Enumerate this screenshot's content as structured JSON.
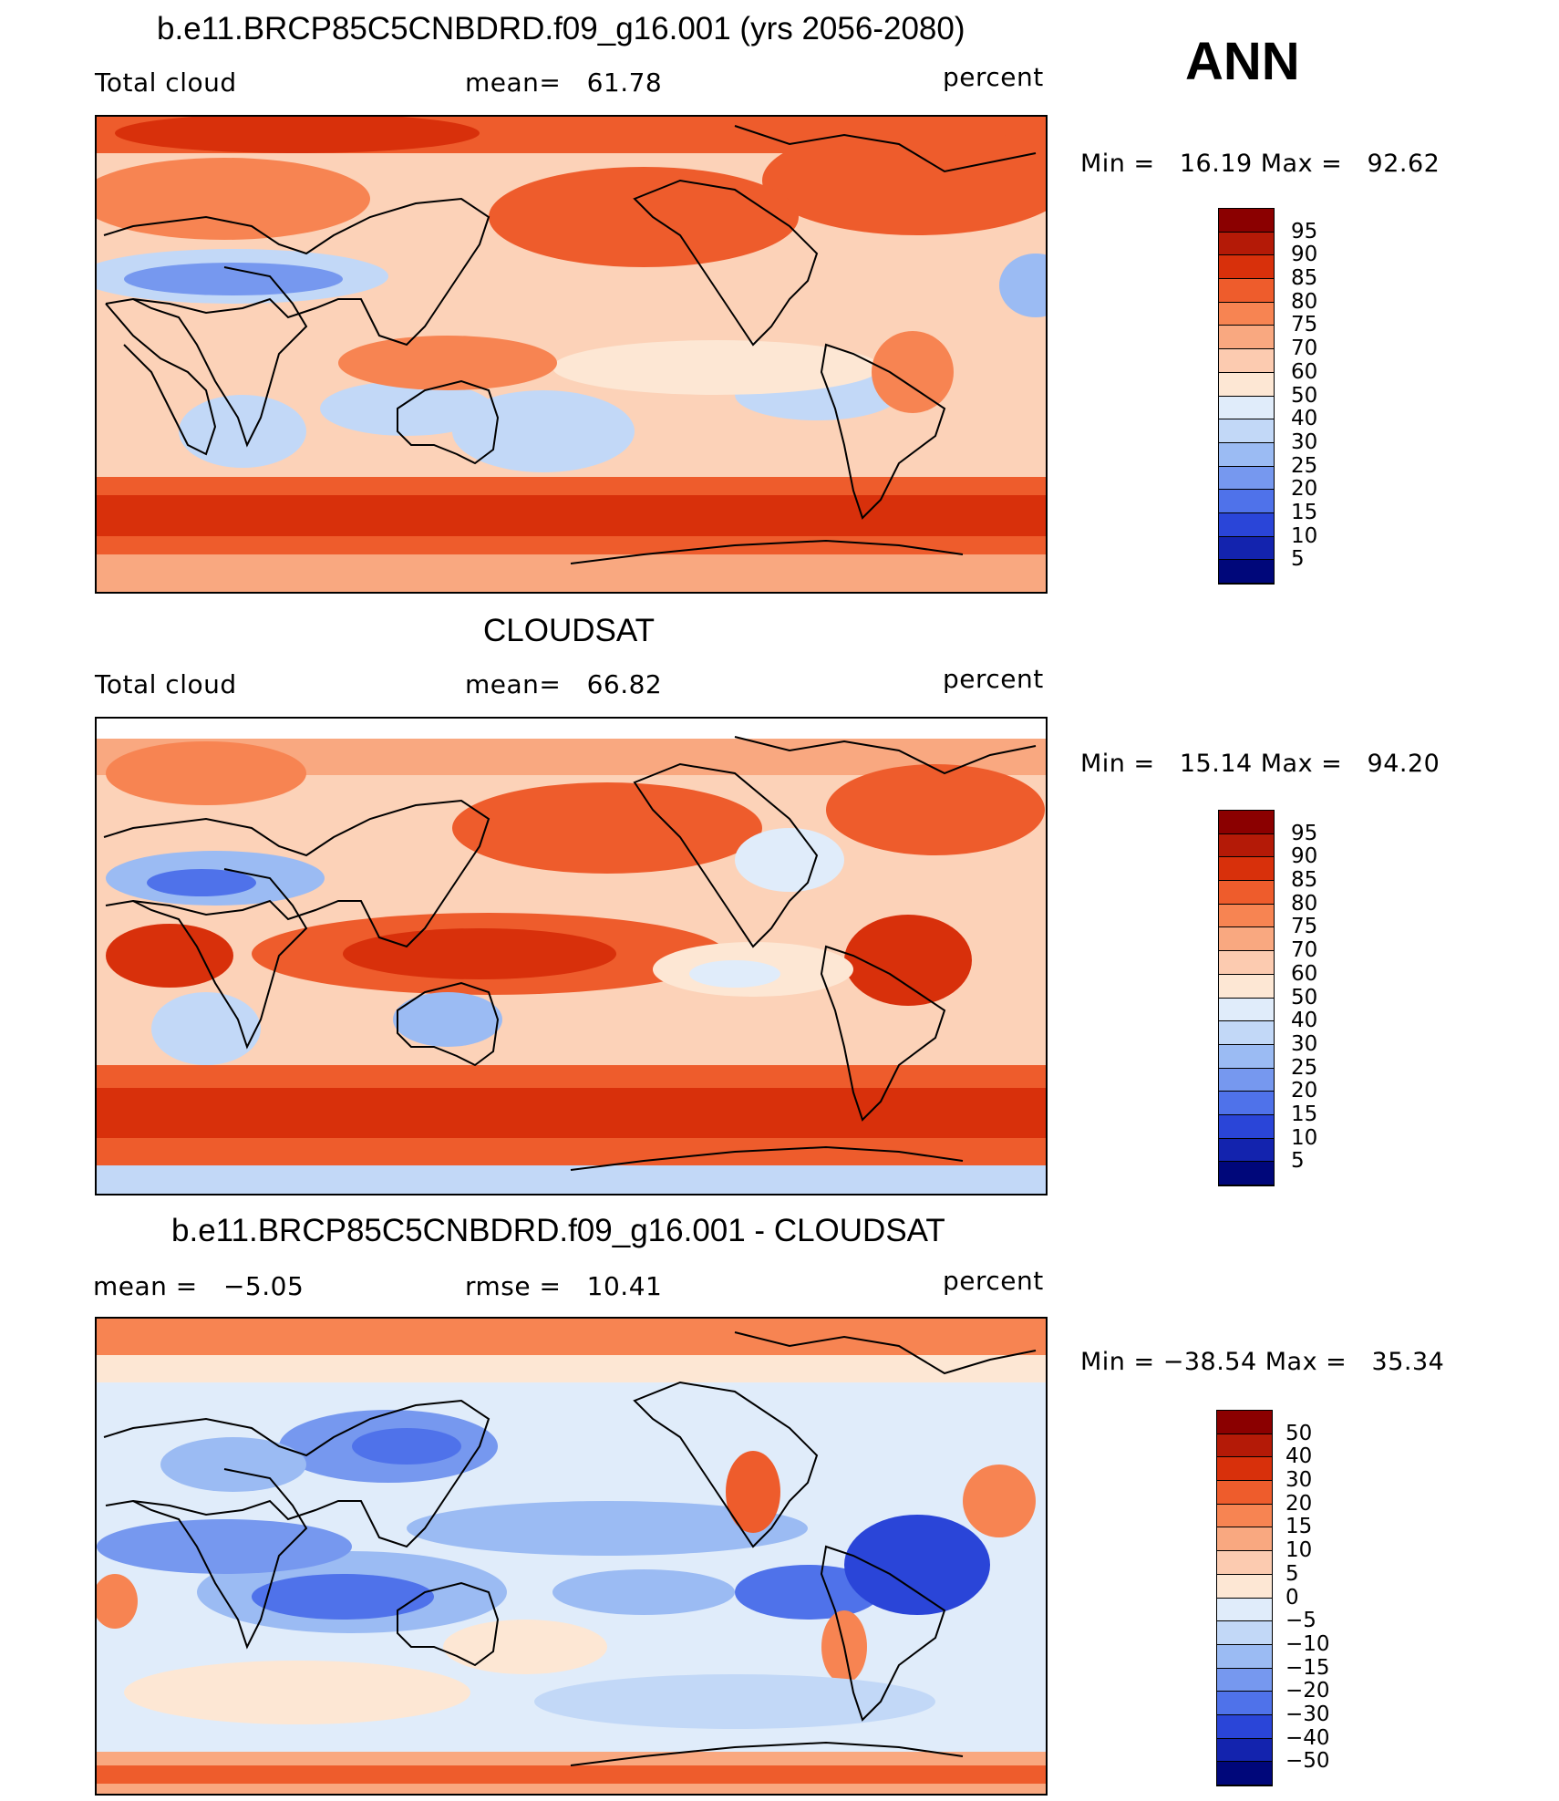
{
  "season": "ANN",
  "panels": [
    {
      "title": "b.e11.BRCP85C5CNBDRD.f09_g16.001 (yrs 2056-2080)",
      "left_label": "Total cloud",
      "center_label": "mean=   61.78",
      "right_label": "percent",
      "min_label": "Min",
      "min_value": "16.19",
      "max_label": "Max",
      "max_value": "92.62",
      "colorbar_ticks": [
        "95",
        "90",
        "85",
        "80",
        "75",
        "70",
        "60",
        "50",
        "40",
        "30",
        "25",
        "20",
        "15",
        "10",
        "5"
      ]
    },
    {
      "title": "CLOUDSAT",
      "left_label": "Total cloud",
      "center_label": "mean=   66.82",
      "right_label": "percent",
      "min_label": "Min",
      "min_value": "15.14",
      "max_label": "Max",
      "max_value": "94.20",
      "colorbar_ticks": [
        "95",
        "90",
        "85",
        "80",
        "75",
        "70",
        "60",
        "50",
        "40",
        "30",
        "25",
        "20",
        "15",
        "10",
        "5"
      ]
    },
    {
      "title": "b.e11.BRCP85C5CNBDRD.f09_g16.001 - CLOUDSAT",
      "left_label": "mean =   −5.05",
      "center_label": "rmse =   10.41",
      "right_label": "percent",
      "min_label": "Min",
      "min_value": "−38.54",
      "max_label": "Max",
      "max_value": "35.34",
      "colorbar_ticks": [
        "50",
        "40",
        "30",
        "20",
        "15",
        "10",
        "5",
        "0",
        "−5",
        "−10",
        "−15",
        "−20",
        "−30",
        "−40",
        "−50"
      ]
    }
  ],
  "colorbar_colors": [
    "#8b0000",
    "#b41a07",
    "#d8300b",
    "#ee5c2c",
    "#f78452",
    "#f9a880",
    "#fccbb0",
    "#fde7d4",
    "#e0ecfa",
    "#c2d8f7",
    "#9bbbf3",
    "#7698ef",
    "#4f72ea",
    "#2a45d8",
    "#1323ae",
    "#00077a"
  ]
}
